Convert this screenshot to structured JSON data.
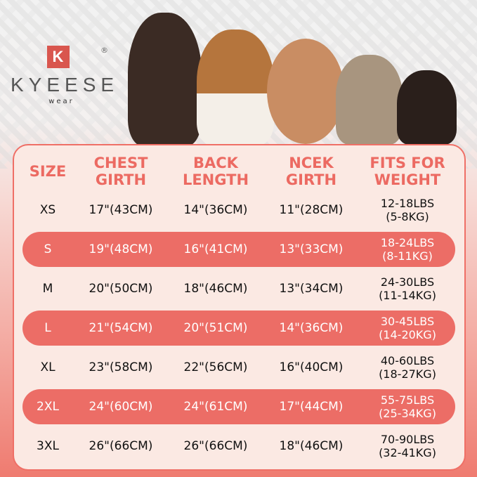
{
  "brand": {
    "logo_letter": "K",
    "name": "KYEESE",
    "sub": "wear",
    "registered": "®"
  },
  "table": {
    "headers": [
      [
        "SIZE"
      ],
      [
        "CHEST",
        "GIRTH"
      ],
      [
        "BACK",
        "LENGTH"
      ],
      [
        "NCEK",
        "GIRTH"
      ],
      [
        "FITS FOR",
        "WEIGHT"
      ]
    ],
    "rows": [
      {
        "size": "XS",
        "chest": "17\"(43CM)",
        "back": "14\"(36CM)",
        "neck": "11\"(28CM)",
        "lbs": "12-18LBS",
        "kg": "(5-8KG)",
        "highlight": false
      },
      {
        "size": "S",
        "chest": "19\"(48CM)",
        "back": "16\"(41CM)",
        "neck": "13\"(33CM)",
        "lbs": "18-24LBS",
        "kg": "(8-11KG)",
        "highlight": true
      },
      {
        "size": "M",
        "chest": "20\"(50CM)",
        "back": "18\"(46CM)",
        "neck": "13\"(34CM)",
        "lbs": "24-30LBS",
        "kg": "(11-14KG)",
        "highlight": false
      },
      {
        "size": "L",
        "chest": "21\"(54CM)",
        "back": "20\"(51CM)",
        "neck": "14\"(36CM)",
        "lbs": "30-45LBS",
        "kg": "(14-20KG)",
        "highlight": true
      },
      {
        "size": "XL",
        "chest": "23\"(58CM)",
        "back": "22\"(56CM)",
        "neck": "16\"(40CM)",
        "lbs": "40-60LBS",
        "kg": "(18-27KG)",
        "highlight": false
      },
      {
        "size": "2XL",
        "chest": "24\"(60CM)",
        "back": "24\"(61CM)",
        "neck": "17\"(44CM)",
        "lbs": "55-75LBS",
        "kg": "(25-34KG)",
        "highlight": true
      },
      {
        "size": "3XL",
        "chest": "26\"(66CM)",
        "back": "26\"(66CM)",
        "neck": "18\"(46CM)",
        "lbs": "70-90LBS",
        "kg": "(32-41KG)",
        "highlight": false
      }
    ]
  },
  "colors": {
    "accent": "#ec6d66",
    "panel": "#fbe9e3"
  }
}
